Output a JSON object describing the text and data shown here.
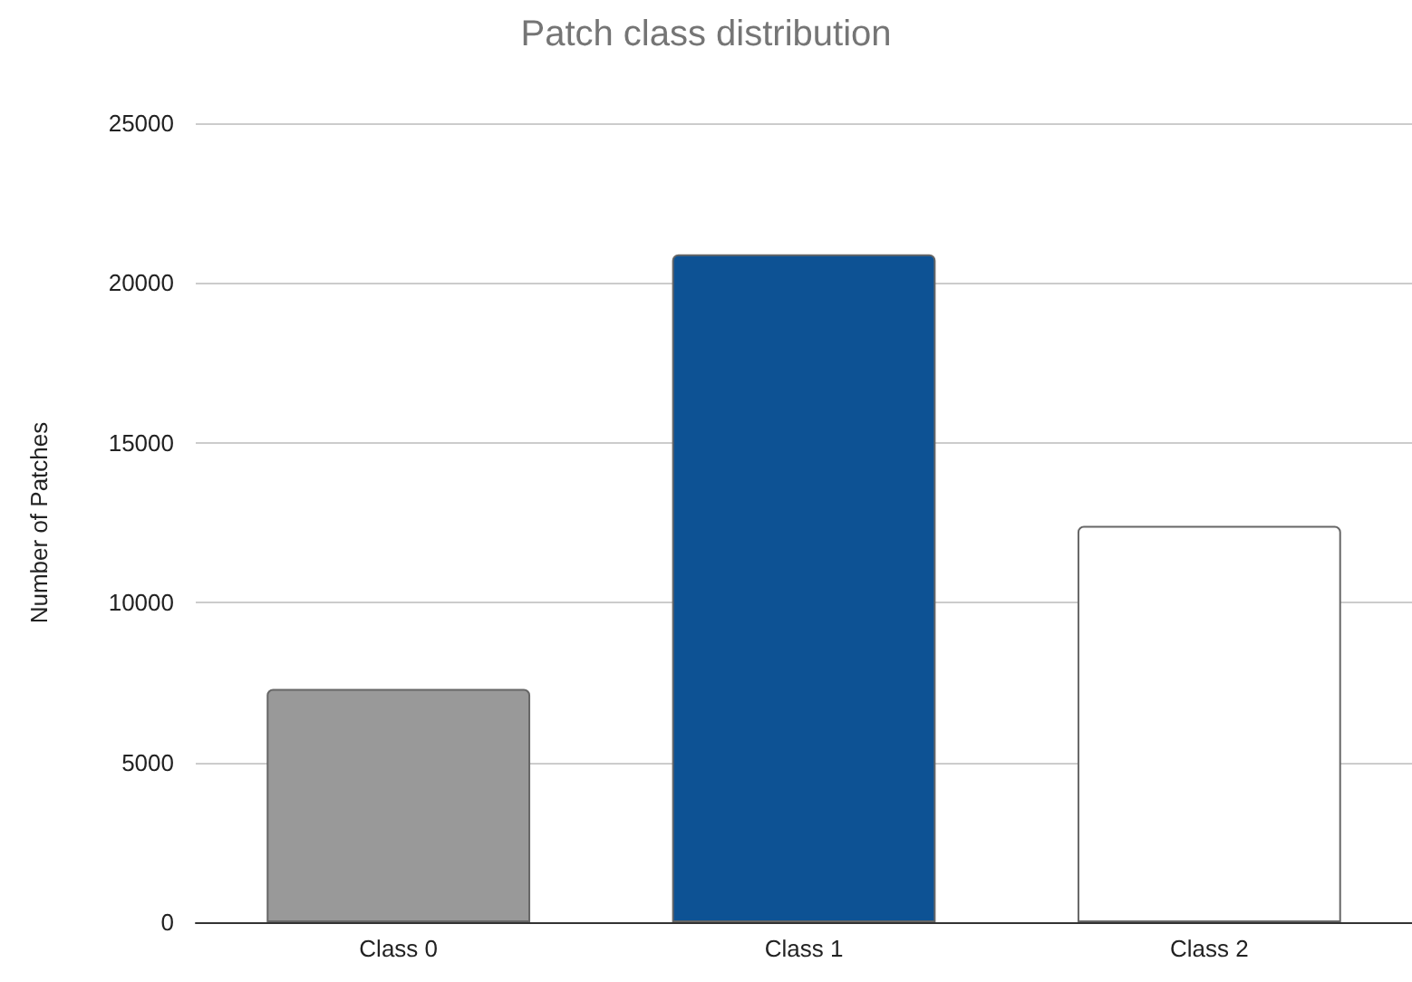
{
  "chart_data": {
    "type": "bar",
    "title": "Patch class distribution",
    "ylabel": "Number of Patches",
    "categories": [
      "Class 0",
      "Class 1",
      "Class 2"
    ],
    "values": [
      7300,
      20900,
      12400
    ],
    "colors": [
      "#999999",
      "#0d5294",
      "#ffffff"
    ],
    "ylim": [
      0,
      25000
    ],
    "yticks": [
      0,
      5000,
      10000,
      15000,
      20000,
      25000
    ],
    "grid": "y"
  }
}
